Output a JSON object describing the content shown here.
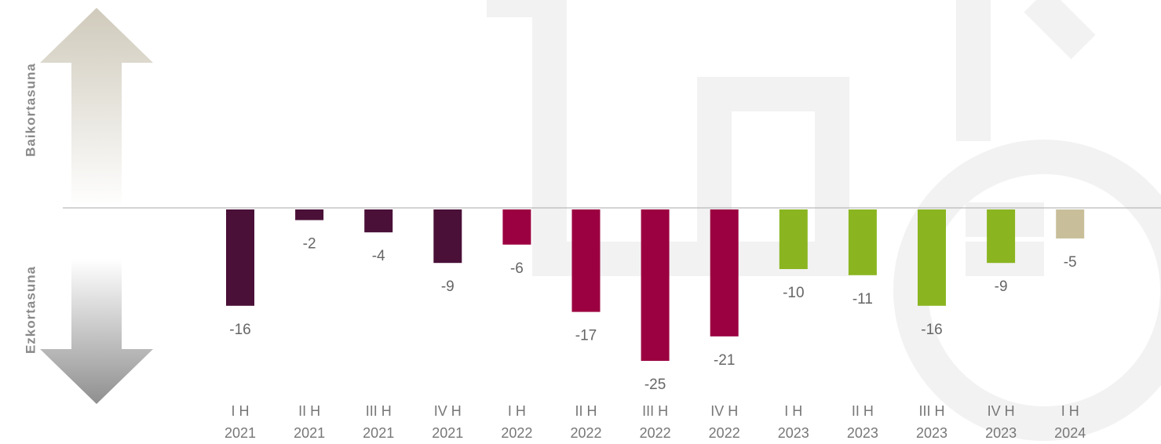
{
  "chart_data": {
    "type": "bar",
    "side_labels": {
      "positive": "Baikortasuna",
      "negative": "Ezkortasuna"
    },
    "categories": [
      [
        "I H",
        "2021"
      ],
      [
        "II H",
        "2021"
      ],
      [
        "III H",
        "2021"
      ],
      [
        "IV H",
        "2021"
      ],
      [
        "I H",
        "2022"
      ],
      [
        "II H",
        "2022"
      ],
      [
        "III H",
        "2022"
      ],
      [
        "IV H",
        "2022"
      ],
      [
        "I H",
        "2023"
      ],
      [
        "II H",
        "2023"
      ],
      [
        "III H",
        "2023"
      ],
      [
        "IV H",
        "2023"
      ],
      [
        "I H",
        "2024"
      ]
    ],
    "values": [
      -16,
      -2,
      -4,
      -9,
      -6,
      -17,
      -25,
      -21,
      -10,
      -11,
      -16,
      -9,
      -5
    ],
    "colors": [
      "#4a1038",
      "#4a1038",
      "#4a1038",
      "#4a1038",
      "#9b0040",
      "#9b0040",
      "#9b0040",
      "#9b0040",
      "#8ab520",
      "#8ab520",
      "#8ab520",
      "#8ab520",
      "#c8bf9a"
    ]
  }
}
